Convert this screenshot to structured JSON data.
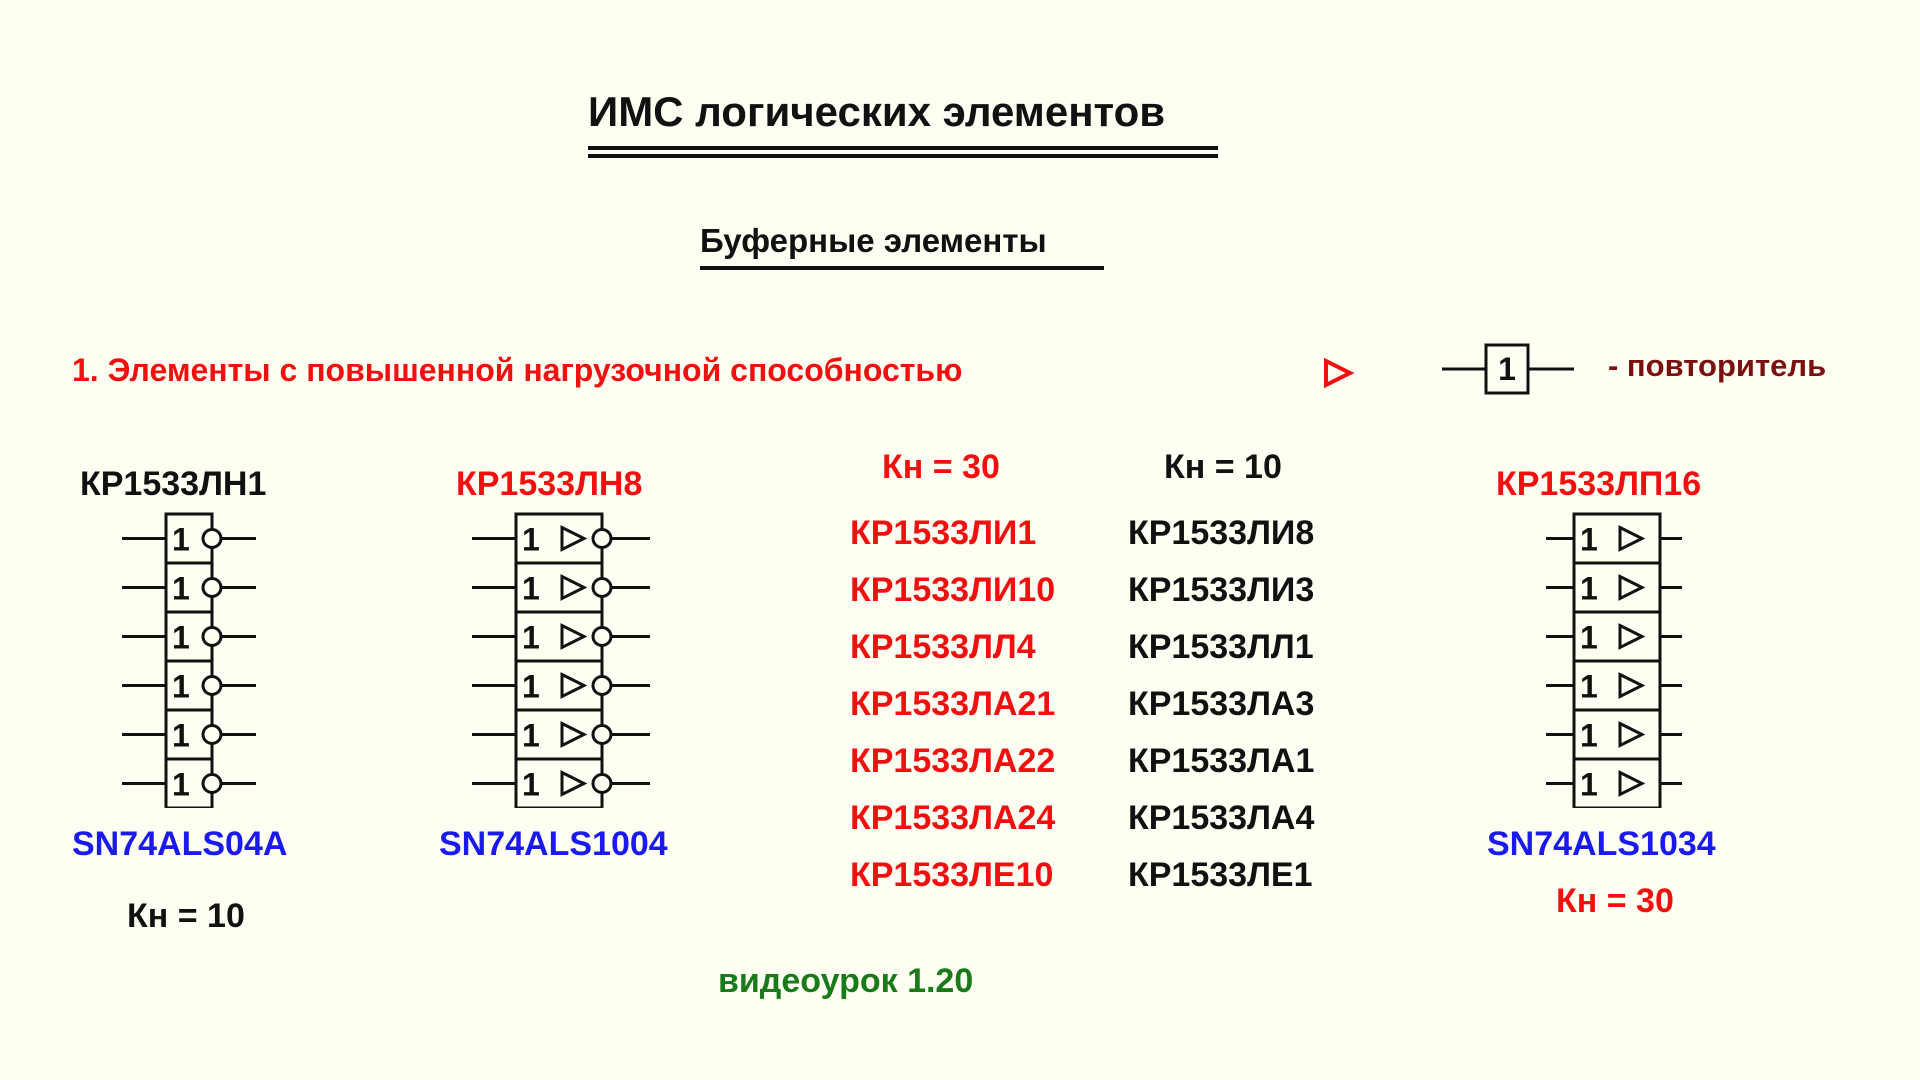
{
  "title": "ИМС логических элементов",
  "subtitle": "Буферные элементы",
  "section": "1. Элементы с повышенной нагрузочной способностью",
  "legend": {
    "box_label": "1",
    "text": "- повторитель"
  },
  "chips": [
    {
      "top_name": "КР1533ЛН1",
      "bottom_name": "SN74ALS04A",
      "kn": "Кн = 10",
      "gate_label": "1",
      "gate_type": "inverter",
      "gates": 6
    },
    {
      "top_name": "КР1533ЛН8",
      "bottom_name": "SN74ALS1004",
      "kn": "",
      "gate_label": "1",
      "gate_type": "buffered-inverter",
      "gates": 6
    },
    {
      "top_name": "КР1533ЛП16",
      "bottom_name": "SN74ALS1034",
      "kn": "Кн = 30",
      "gate_label": "1",
      "gate_type": "buffer",
      "gates": 6
    }
  ],
  "table": {
    "left_header": "Кн = 30",
    "right_header": "Кн = 10",
    "left": [
      "КР1533ЛИ1",
      "КР1533ЛИ10",
      "КР1533ЛЛ4",
      "КР1533ЛА21",
      "КР1533ЛА22",
      "КР1533ЛА24",
      "КР1533ЛЕ10"
    ],
    "right": [
      "КР1533ЛИ8",
      "КР1533ЛИ3",
      "КР1533ЛЛ1",
      "КР1533ЛА3",
      "КР1533ЛА1",
      "КР1533ЛА4",
      "КР1533ЛЕ1"
    ]
  },
  "footer": "видеоурок 1.20",
  "colors": {
    "background": "#fefef2",
    "red": "#f01010",
    "blue": "#1a1aee",
    "green": "#1a7a1a",
    "black": "#111111",
    "dark_red": "#7a1010"
  },
  "icons": [
    "buffer-triangle-icon",
    "inverter-bubble-icon"
  ]
}
